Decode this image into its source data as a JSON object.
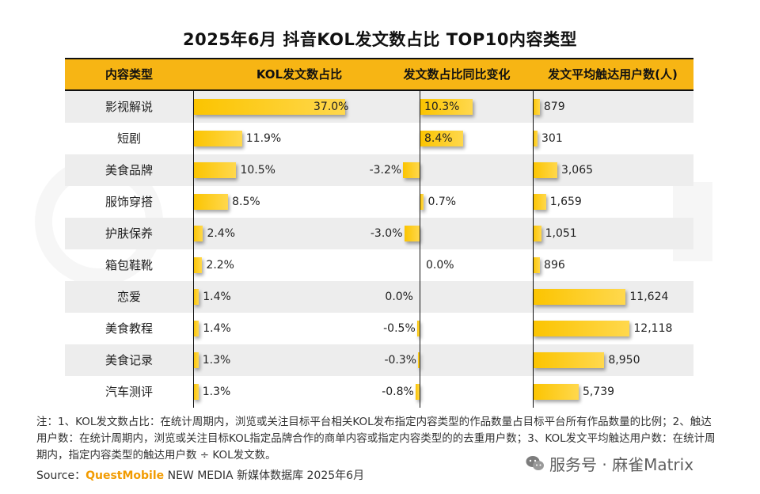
{
  "title": "2025年6月 抖音KOL发文数占比 TOP10内容类型",
  "headers": {
    "type": "内容类型",
    "share": "KOL发文数占比",
    "yoy": "发文数占比同比变化",
    "reach": "发文平均触达用户数(人)"
  },
  "colors": {
    "header_bg": "#f7b514",
    "bar": "#fbc400",
    "row_shade": "#ededed",
    "brand": "#f29b00"
  },
  "chart_data": {
    "type": "table",
    "categories": [
      "影视解说",
      "短剧",
      "美食品牌",
      "服饰穿搭",
      "护肤保养",
      "箱包鞋靴",
      "恋爱",
      "美食教程",
      "美食记录",
      "汽车测评"
    ],
    "series": [
      {
        "name": "KOL发文数占比",
        "unit": "%",
        "values": [
          37.0,
          11.9,
          10.5,
          8.5,
          2.4,
          2.2,
          1.4,
          1.4,
          1.3,
          1.3
        ],
        "labels": [
          "37.0%",
          "11.9%",
          "10.5%",
          "8.5%",
          "2.4%",
          "2.2%",
          "1.4%",
          "1.4%",
          "1.3%",
          "1.3%"
        ]
      },
      {
        "name": "发文数占比同比变化",
        "unit": "%",
        "values": [
          10.3,
          8.4,
          -3.2,
          0.7,
          -3.0,
          0.0,
          0.0,
          -0.5,
          -0.3,
          -0.8
        ],
        "labels": [
          "10.3%",
          "8.4%",
          "-3.2%",
          "0.7%",
          "-3.0%",
          "0.0%",
          "0.0%",
          "-0.5%",
          "-0.3%",
          "-0.8%"
        ]
      },
      {
        "name": "发文平均触达用户数(人)",
        "values": [
          879,
          301,
          3065,
          1659,
          1051,
          896,
          11624,
          12118,
          8950,
          5739
        ],
        "labels": [
          "879",
          "301",
          "3,065",
          "1,659",
          "1,051",
          "896",
          "11,624",
          "12,118",
          "8,950",
          "5,739"
        ]
      }
    ]
  },
  "note": "注：1、KOL发文数占比：在统计周期内，浏览或关注目标平台相关KOL发布指定内容类型的作品数量占目标平台所有作品数量的比例；2、触达用户数：在统计周期内，浏览或关注目标KOL指定品牌合作的商单内容或指定内容类型的的去重用户数；3、KOL发文平均触达用户数：在统计周期内，指定内容类型的触达用户数 ÷ KOL发文数。",
  "source": {
    "label": "Source：",
    "brand": "QuestMobile",
    "text": " NEW MEDIA 新媒体数据库 2025年6月"
  },
  "watermark": "服务号 · 麻雀Matrix"
}
